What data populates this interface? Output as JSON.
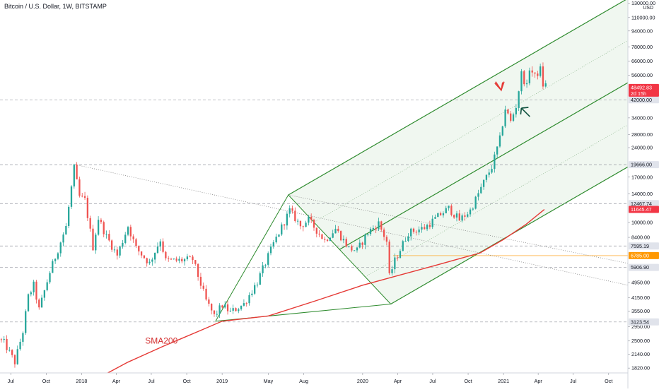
{
  "header": {
    "title": "Bitcoin / U.S. Dollar, 1W, BITSTAMP",
    "currency": "USD"
  },
  "chart_data": {
    "type": "candlestick",
    "y_scale": "log",
    "ylim": [
      1720,
      135000
    ],
    "y_ticks": [
      {
        "v": 130000,
        "label": "130000.00"
      },
      {
        "v": 110000,
        "label": "110000.00"
      },
      {
        "v": 94000,
        "label": "94000.00"
      },
      {
        "v": 78000,
        "label": "78000.00"
      },
      {
        "v": 66000,
        "label": "66000.00"
      },
      {
        "v": 56000,
        "label": "56000.00"
      },
      {
        "v": 34000,
        "label": "34000.00"
      },
      {
        "v": 28000,
        "label": "28000.00"
      },
      {
        "v": 24000,
        "label": "24000.00"
      },
      {
        "v": 17000,
        "label": "17000.00"
      },
      {
        "v": 14000,
        "label": "14000.00"
      },
      {
        "v": 10000,
        "label": "10000.00"
      },
      {
        "v": 8400,
        "label": "8400.00"
      },
      {
        "v": 4950,
        "label": "4950.00"
      },
      {
        "v": 4150,
        "label": "4150.00"
      },
      {
        "v": 3550,
        "label": "3550.00"
      },
      {
        "v": 2950,
        "label": "2950.00"
      },
      {
        "v": 2500,
        "label": "2500.00"
      },
      {
        "v": 2140,
        "label": "2140.00"
      },
      {
        "v": 1820,
        "label": "1820.00"
      }
    ],
    "x_ticks": [
      {
        "date": "2017-07-01",
        "label": "Jul"
      },
      {
        "date": "2017-10-01",
        "label": "Oct"
      },
      {
        "date": "2018-01-01",
        "label": "2018"
      },
      {
        "date": "2018-04-01",
        "label": "Apr"
      },
      {
        "date": "2018-07-01",
        "label": "Jul"
      },
      {
        "date": "2018-10-01",
        "label": "Oct"
      },
      {
        "date": "2019-01-01",
        "label": "2019"
      },
      {
        "date": "2019-05-01",
        "label": "May"
      },
      {
        "date": "2019-08-01",
        "label": "Aug"
      },
      {
        "date": "2020-01-01",
        "label": "2020"
      },
      {
        "date": "2020-04-01",
        "label": "Apr"
      },
      {
        "date": "2020-07-01",
        "label": "Jul"
      },
      {
        "date": "2020-10-01",
        "label": "Oct"
      },
      {
        "date": "2021-01-01",
        "label": "2021"
      },
      {
        "date": "2021-04-01",
        "label": "Apr"
      },
      {
        "date": "2021-07-01",
        "label": "Jul"
      },
      {
        "date": "2021-10-01",
        "label": "Oct"
      }
    ],
    "xlim": [
      "2017-06-03",
      "2021-11-20"
    ],
    "anchors": [
      [
        "2017-06-03",
        2550
      ],
      [
        "2017-06-17",
        2450
      ],
      [
        "2017-07-15",
        1950
      ],
      [
        "2017-08-05",
        2800
      ],
      [
        "2017-08-19",
        4200
      ],
      [
        "2017-09-02",
        4800
      ],
      [
        "2017-09-16",
        3600
      ],
      [
        "2017-10-14",
        5600
      ],
      [
        "2017-11-04",
        7300
      ],
      [
        "2017-11-25",
        9500
      ],
      [
        "2017-12-16",
        18900
      ],
      [
        "2017-12-30",
        13500
      ],
      [
        "2018-01-13",
        13000
      ],
      [
        "2018-02-03",
        7500
      ],
      [
        "2018-02-17",
        10500
      ],
      [
        "2018-03-10",
        8500
      ],
      [
        "2018-04-07",
        6800
      ],
      [
        "2018-05-05",
        9600
      ],
      [
        "2018-05-26",
        7400
      ],
      [
        "2018-06-30",
        6200
      ],
      [
        "2018-07-28",
        8200
      ],
      [
        "2018-08-11",
        6400
      ],
      [
        "2018-09-08",
        6400
      ],
      [
        "2018-10-20",
        6500
      ],
      [
        "2018-11-24",
        4000
      ],
      [
        "2018-12-15",
        3350
      ],
      [
        "2019-01-05",
        3800
      ],
      [
        "2019-01-26",
        3500
      ],
      [
        "2019-03-02",
        3850
      ],
      [
        "2019-04-06",
        5000
      ],
      [
        "2019-05-18",
        7800
      ],
      [
        "2019-06-29",
        11500
      ],
      [
        "2019-07-27",
        9600
      ],
      [
        "2019-08-17",
        10300
      ],
      [
        "2019-09-28",
        8100
      ],
      [
        "2019-10-26",
        9300
      ],
      [
        "2019-11-30",
        7400
      ],
      [
        "2019-12-21",
        7200
      ],
      [
        "2020-01-18",
        8900
      ],
      [
        "2020-02-15",
        9900
      ],
      [
        "2020-03-07",
        8000
      ],
      [
        "2020-03-14",
        5300
      ],
      [
        "2020-03-28",
        6400
      ],
      [
        "2020-05-02",
        8900
      ],
      [
        "2020-06-13",
        9400
      ],
      [
        "2020-07-25",
        11000
      ],
      [
        "2020-08-15",
        11800
      ],
      [
        "2020-09-12",
        10300
      ],
      [
        "2020-10-10",
        11500
      ],
      [
        "2020-10-24",
        13100
      ],
      [
        "2020-11-14",
        16000
      ],
      [
        "2020-12-05",
        19200
      ],
      [
        "2020-12-26",
        26500
      ],
      [
        "2021-01-09",
        38000
      ],
      [
        "2021-01-23",
        32500
      ],
      [
        "2021-02-06",
        39000
      ],
      [
        "2021-02-20",
        57000
      ],
      [
        "2021-03-06",
        48800
      ],
      [
        "2021-03-13",
        61000
      ],
      [
        "2021-03-27",
        55000
      ],
      [
        "2021-04-10",
        60000
      ],
      [
        "2021-04-17",
        50000
      ]
    ],
    "sma200": [
      [
        "2018-03-10",
        1720
      ],
      [
        "2018-05-01",
        1950
      ],
      [
        "2018-08-01",
        2350
      ],
      [
        "2018-11-01",
        2800
      ],
      [
        "2019-01-01",
        3150
      ],
      [
        "2019-05-01",
        3350
      ],
      [
        "2019-09-01",
        4000
      ],
      [
        "2020-01-01",
        4800
      ],
      [
        "2020-03-14",
        5250
      ],
      [
        "2020-07-01",
        6000
      ],
      [
        "2020-11-01",
        7000
      ],
      [
        "2021-01-01",
        8200
      ],
      [
        "2021-03-01",
        9800
      ],
      [
        "2021-04-17",
        11645
      ]
    ],
    "sma_label": "SMA200",
    "pitchfork": {
      "p1": [
        "2018-12-15",
        3150
      ],
      "p2": [
        "2019-06-22",
        13800
      ],
      "p3": [
        "2020-03-14",
        3850
      ],
      "extend_to": "2021-11-20"
    },
    "trendline": {
      "from": [
        "2017-12-16",
        19666
      ],
      "to": [
        "2021-11-20",
        4800
      ],
      "from2": [
        "2019-06-22",
        13800
      ],
      "to2": [
        "2021-11-20",
        6200
      ]
    },
    "h_levels": [
      {
        "v": 19666.0,
        "label": "19666.00",
        "style": "gray"
      },
      {
        "v": 12467.74,
        "label": "12467.74",
        "style": "gray"
      },
      {
        "v": 7595.19,
        "label": "7595.19",
        "style": "gray"
      },
      {
        "v": 5906.9,
        "label": "5906.90",
        "style": "gray"
      },
      {
        "v": 3123.54,
        "label": "3123.54",
        "style": "gray"
      },
      {
        "v": 42000.0,
        "label": "42000.00",
        "style": "gray"
      },
      {
        "v": 6785.0,
        "label": "6785.00",
        "style": "orange"
      },
      {
        "v": 11645.47,
        "label": "11645.47",
        "style": "red"
      },
      {
        "v": 48492.83,
        "label": "48492.83",
        "style": "price"
      }
    ],
    "price_countdown": "2d 15h",
    "arrows": [
      {
        "at": [
          "2020-12-26",
          47000
        ],
        "color": "#e53935",
        "dir": "down"
      },
      {
        "at": [
          "2021-02-20",
          37500
        ],
        "color": "#0d4f3c",
        "dir": "up"
      }
    ],
    "colors": {
      "up": "#26a69a",
      "down": "#ef5350",
      "pitchfork": "#2e8b2e",
      "sma": "#e53935"
    }
  }
}
